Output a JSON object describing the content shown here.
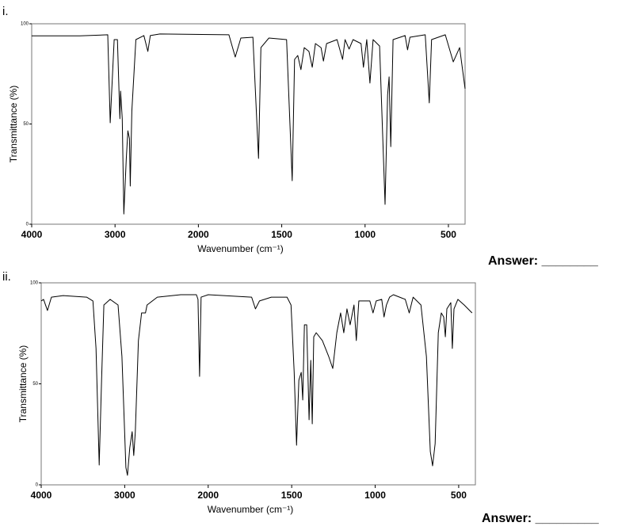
{
  "questions": [
    {
      "label": "i.",
      "answer": "Answer: ________"
    },
    {
      "label": "ii.",
      "answer": "Answer: _________"
    }
  ],
  "chart_data": [
    {
      "type": "line",
      "xlabel": "Wavenumber (cm⁻¹)",
      "ylabel": "Transmittance (%)",
      "color": "#000000",
      "xlim": [
        4000,
        400
      ],
      "xticks": [
        4000,
        3000,
        2000,
        1500,
        1000,
        500
      ],
      "ylim": [
        0,
        100
      ],
      "yticks": [
        0,
        50,
        100
      ],
      "x": [
        4000,
        3423,
        3087,
        3058,
        3010,
        2971,
        2942,
        2933,
        2913,
        2894,
        2865,
        2846,
        2827,
        2817,
        2798,
        2750,
        2654,
        2606,
        2577,
        2462,
        1817,
        1779,
        1745,
        1673,
        1639,
        1625,
        1577,
        1471,
        1437,
        1423,
        1404,
        1385,
        1365,
        1337,
        1317,
        1298,
        1264,
        1250,
        1231,
        1168,
        1135,
        1120,
        1096,
        1072,
        1024,
        1010,
        990,
        971,
        952,
        913,
        880,
        865,
        856,
        846,
        832,
        760,
        745,
        731,
        639,
        615,
        601,
        519,
        471,
        433,
        400
      ],
      "values": [
        94,
        94,
        94.5,
        50.6,
        92.1,
        92.1,
        52.6,
        66.4,
        52.6,
        5.1,
        32.8,
        46.6,
        42.7,
        19,
        56.5,
        92.1,
        94.1,
        86.2,
        94.1,
        94.9,
        94.5,
        83.4,
        92.9,
        93.3,
        32.8,
        88.1,
        92.9,
        92.1,
        21.7,
        82.2,
        84.2,
        77.1,
        88.1,
        86.2,
        78.3,
        90.1,
        88.1,
        81.4,
        90.1,
        92.1,
        82.2,
        92.1,
        87.4,
        92.1,
        90.1,
        78.3,
        92.1,
        70.4,
        92.1,
        88.9,
        9.9,
        64.4,
        73.5,
        38.7,
        92.1,
        94.1,
        87,
        93.3,
        94.5,
        60.5,
        92.1,
        94.5,
        81,
        88.1,
        67.6
      ]
    },
    {
      "type": "line",
      "xlabel": "Wavenumber (cm⁻¹)",
      "ylabel": "Transmittance (%)",
      "color": "#000000",
      "xlim": [
        4000,
        400
      ],
      "xticks": [
        4000,
        3000,
        2000,
        1500,
        1000,
        500
      ],
      "ylim": [
        0,
        100
      ],
      "yticks": [
        0,
        50,
        100
      ],
      "x": [
        4000,
        3972,
        3925,
        3878,
        3737,
        3455,
        3380,
        3343,
        3305,
        3277,
        3249,
        3174,
        3080,
        3033,
        2986,
        2967,
        2939,
        2911,
        2892,
        2873,
        2836,
        2798,
        2751,
        2732,
        2610,
        2329,
        2141,
        2122,
        2103,
        2085,
        2000,
        1740,
        1717,
        1693,
        1622,
        1528,
        1504,
        1485,
        1471,
        1457,
        1443,
        1434,
        1424,
        1410,
        1396,
        1386,
        1377,
        1368,
        1353,
        1316,
        1278,
        1254,
        1230,
        1207,
        1188,
        1169,
        1150,
        1127,
        1113,
        1098,
        1032,
        1013,
        994,
        961,
        947,
        933,
        914,
        891,
        820,
        796,
        773,
        726,
        693,
        670,
        656,
        641,
        622,
        604,
        590,
        580,
        571,
        547,
        538,
        528,
        505,
        467,
        420
      ],
      "values": [
        91,
        91.8,
        86.3,
        92.9,
        93.7,
        92.9,
        91,
        67.5,
        9.8,
        51.8,
        89,
        91.8,
        89,
        63.5,
        8.6,
        4.7,
        18.4,
        26.3,
        14.5,
        26.3,
        71.4,
        85.1,
        85.1,
        89,
        92.9,
        94.1,
        94.1,
        91.8,
        53.7,
        92.9,
        94.1,
        92.9,
        87.1,
        91,
        92.9,
        92.9,
        89,
        55.7,
        19.6,
        51.8,
        55.7,
        42,
        79.2,
        79.2,
        32.2,
        61.6,
        30.2,
        73.3,
        75.3,
        71.4,
        63.5,
        57.6,
        75.3,
        85.1,
        75.3,
        87.1,
        79.2,
        89,
        71.4,
        91,
        91,
        85.1,
        91,
        91.8,
        83.1,
        89,
        92.9,
        94.1,
        91.8,
        85.1,
        92.9,
        89,
        63.5,
        16.5,
        9.4,
        20.4,
        75.3,
        85.1,
        83.1,
        73.3,
        87.1,
        90.2,
        67.5,
        87.1,
        91.8,
        89,
        85.1
      ]
    }
  ]
}
